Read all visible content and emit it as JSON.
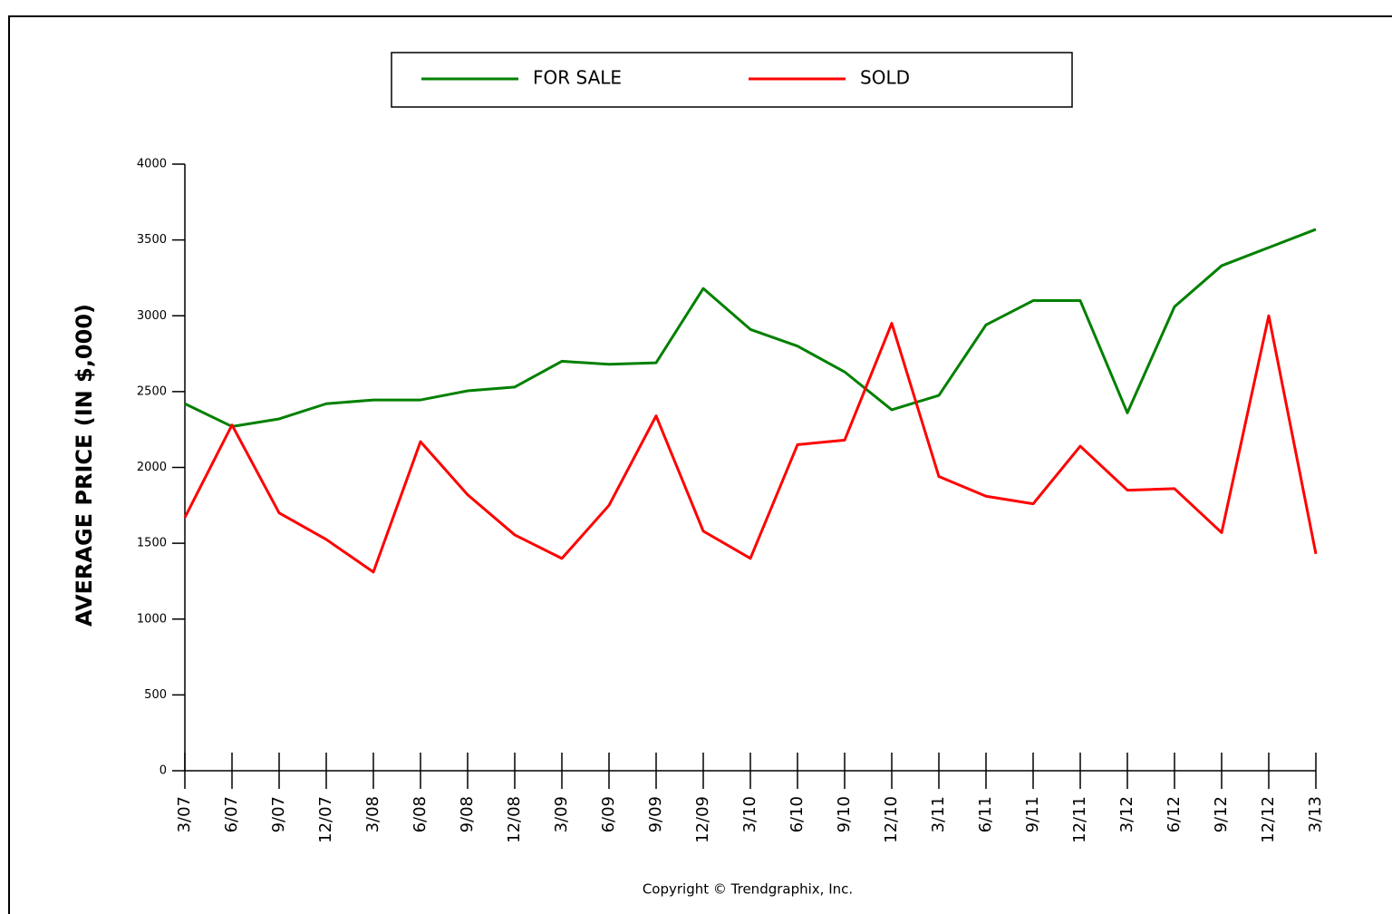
{
  "chart_data": {
    "type": "line",
    "y_label": "AVERAGE PRICE (IN $,000)",
    "footer": "Copyright © Trendgraphix, Inc.",
    "categories": [
      "3/07",
      "6/07",
      "9/07",
      "12/07",
      "3/08",
      "6/08",
      "9/08",
      "12/08",
      "3/09",
      "6/09",
      "9/09",
      "12/09",
      "3/10",
      "6/10",
      "9/10",
      "12/10",
      "3/11",
      "6/11",
      "9/11",
      "12/11",
      "3/12",
      "6/12",
      "9/12",
      "12/12",
      "3/13"
    ],
    "series": [
      {
        "name": "FOR SALE",
        "color": "#008000",
        "values": [
          2420,
          2270,
          2320,
          2420,
          2445,
          2445,
          2505,
          2530,
          2700,
          2680,
          2690,
          3180,
          2910,
          2800,
          2630,
          2380,
          2475,
          2940,
          3100,
          3100,
          2360,
          3060,
          3330,
          3450,
          3570
        ]
      },
      {
        "name": "SOLD",
        "color": "#ff0000",
        "values": [
          1670,
          2280,
          1700,
          1525,
          1310,
          2170,
          1820,
          1555,
          1400,
          1750,
          2340,
          1580,
          1400,
          2150,
          2180,
          2950,
          1940,
          1810,
          1760,
          2140,
          1850,
          1860,
          1570,
          3000,
          1430
        ]
      }
    ],
    "ylim": [
      0,
      4000
    ],
    "yticks": [
      0,
      500,
      1000,
      1500,
      2000,
      2500,
      3000,
      3500,
      4000
    ],
    "grid": false
  }
}
